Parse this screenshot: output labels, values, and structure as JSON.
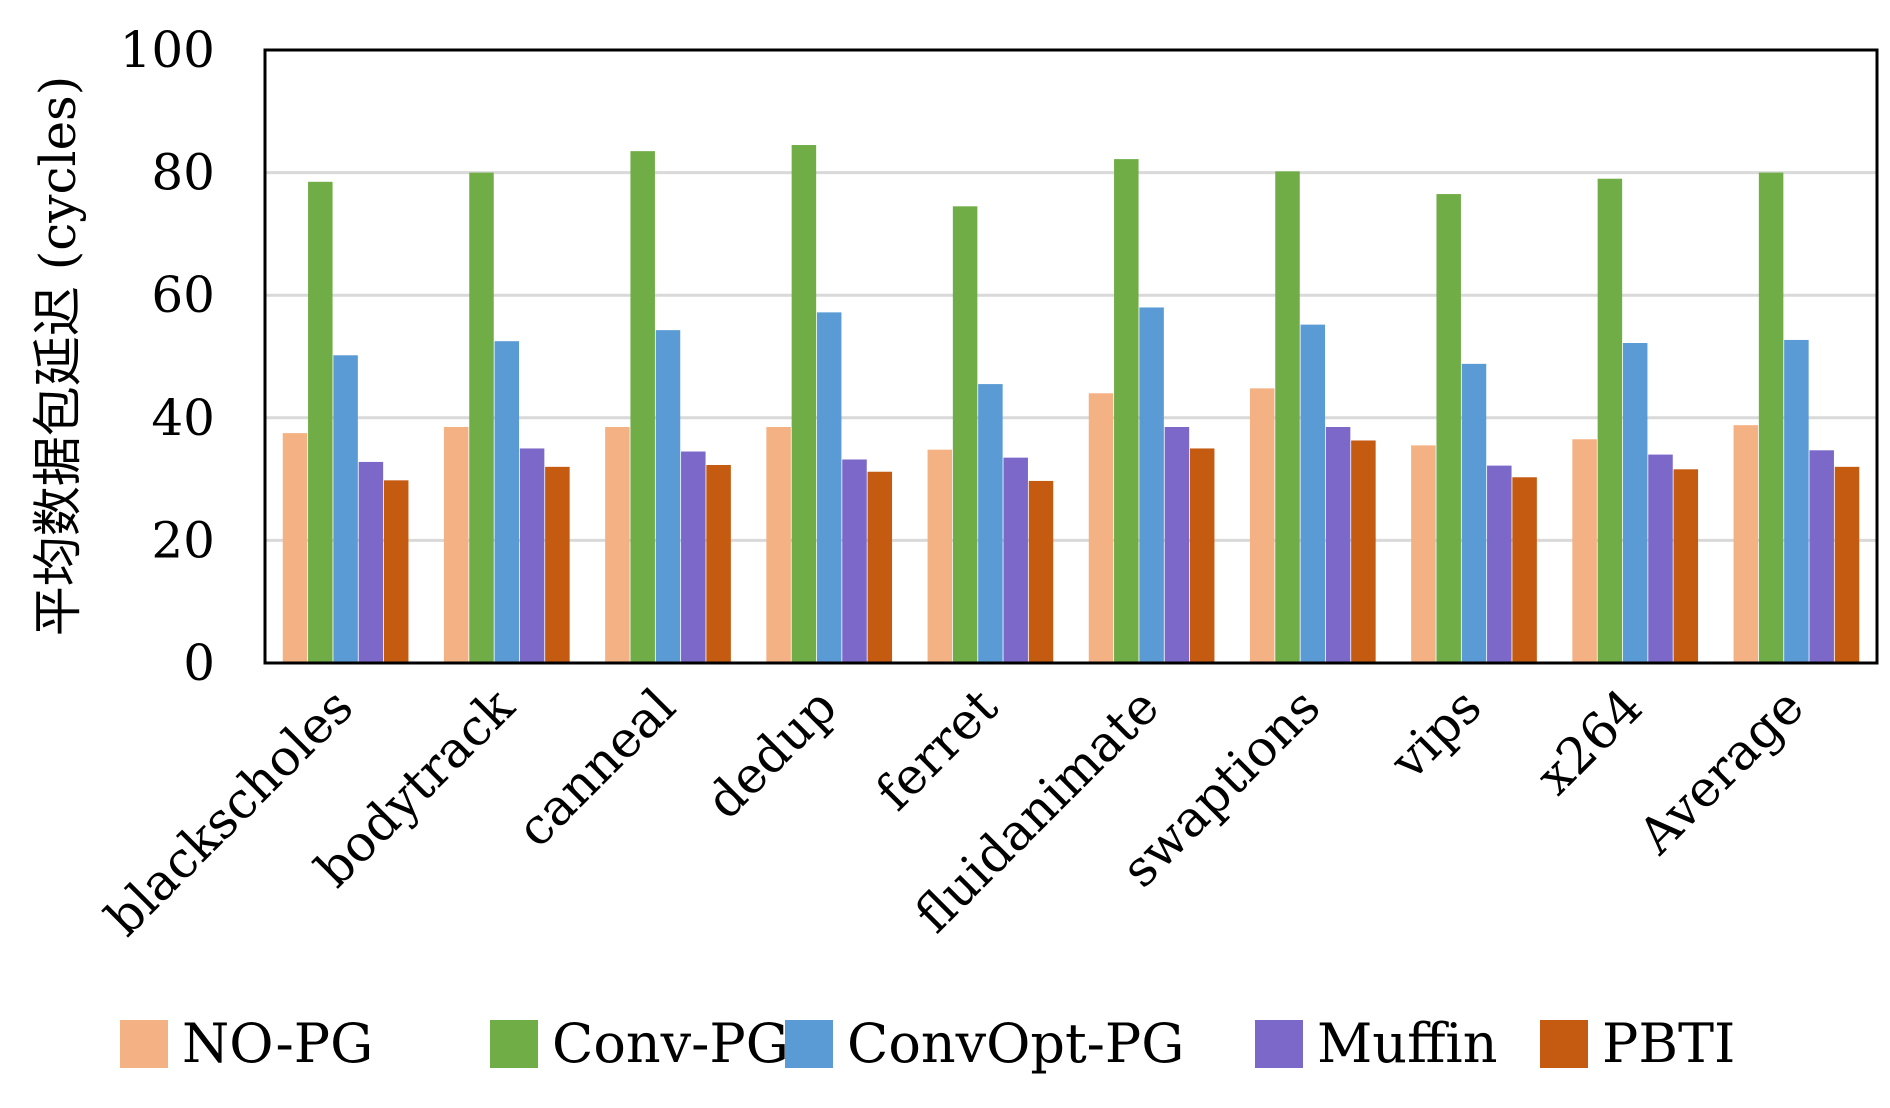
{
  "chart_data": {
    "type": "bar",
    "title": "",
    "xlabel": "",
    "ylabel": "平均数据包延迟 (cycles)",
    "ylim": [
      0,
      100
    ],
    "yticks": [
      "0",
      "20",
      "40",
      "60",
      "80",
      "100"
    ],
    "grid": true,
    "legend_position": "bottom",
    "categories": [
      "blackscholes",
      "bodytrack",
      "canneal",
      "dedup",
      "ferret",
      "fluidanimate",
      "swaptions",
      "vips",
      "x264",
      "Average"
    ],
    "series": [
      {
        "name": "NO-PG",
        "color": "#F4B183",
        "values": [
          37.5,
          38.5,
          38.5,
          38.5,
          34.8,
          44.0,
          44.8,
          35.5,
          36.5,
          38.8
        ]
      },
      {
        "name": "Conv-PG",
        "color": "#70AD47",
        "values": [
          78.5,
          80.0,
          83.5,
          84.5,
          74.5,
          82.2,
          80.2,
          76.5,
          79.0,
          80.0
        ]
      },
      {
        "name": "ConvOpt-PG",
        "color": "#5B9BD5",
        "values": [
          50.2,
          52.5,
          54.3,
          57.2,
          45.5,
          58.0,
          55.2,
          48.8,
          52.2,
          52.7
        ]
      },
      {
        "name": "Muffin",
        "color": "#7B68C8",
        "values": [
          32.8,
          35.0,
          34.5,
          33.2,
          33.5,
          38.5,
          38.5,
          32.2,
          34.0,
          34.7
        ]
      },
      {
        "name": "PBTI",
        "color": "#C55A11",
        "values": [
          29.8,
          32.0,
          32.3,
          31.2,
          29.7,
          35.0,
          36.3,
          30.3,
          31.6,
          32.0
        ]
      }
    ]
  }
}
